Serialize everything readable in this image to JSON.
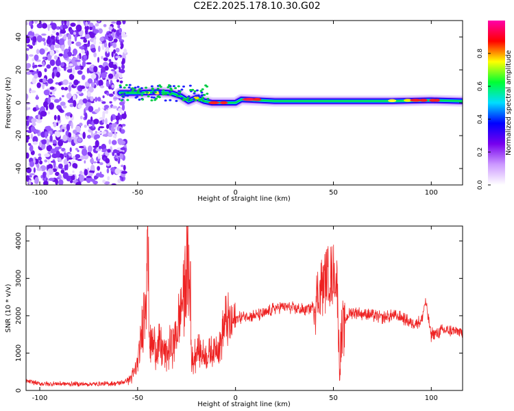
{
  "title": "C2E2.2025.178.10.30.G02",
  "chart_data": [
    {
      "type": "heatmap",
      "xlabel": "Height of straight line (km)",
      "ylabel": "Frequency (Hz)",
      "xlim": [
        -107,
        116
      ],
      "ylim": [
        -50,
        50
      ],
      "xticks": [
        -100,
        -50,
        0,
        50,
        100
      ],
      "yticks": [
        -40,
        -20,
        0,
        20,
        40
      ],
      "grid": false,
      "noise_region_x": [
        -107,
        -59
      ],
      "ridge": [
        {
          "x": -59,
          "y": 6
        },
        {
          "x": -50,
          "y": 6
        },
        {
          "x": -40,
          "y": 6.5
        },
        {
          "x": -33,
          "y": 6
        },
        {
          "x": -28,
          "y": 4
        },
        {
          "x": -24,
          "y": 1
        },
        {
          "x": -20,
          "y": 3
        },
        {
          "x": -16,
          "y": 1
        },
        {
          "x": -12,
          "y": 0
        },
        {
          "x": 0,
          "y": 0
        },
        {
          "x": 3,
          "y": 2
        },
        {
          "x": 20,
          "y": 1
        },
        {
          "x": 40,
          "y": 1
        },
        {
          "x": 60,
          "y": 1
        },
        {
          "x": 80,
          "y": 1
        },
        {
          "x": 100,
          "y": 1.5
        },
        {
          "x": 116,
          "y": 1
        }
      ],
      "colorbar": {
        "label": "Normalized spectral amplitude",
        "range": [
          0,
          1
        ],
        "ticks": [
          0.0,
          0.2,
          0.4,
          0.6,
          0.8
        ],
        "tick_labels": [
          "0.0",
          "0.2",
          "0.4",
          "0.6",
          "0.8"
        ],
        "colors": [
          "#ffffff",
          "#cc99ff",
          "#7700ee",
          "#0000ff",
          "#00ddff",
          "#00ff33",
          "#ffff00",
          "#ff0000",
          "#ff00aa"
        ]
      }
    },
    {
      "type": "line",
      "xlabel": "Height of straight line (km)",
      "ylabel": "SNR (10 * v/v)",
      "xlim": [
        -107,
        116
      ],
      "ylim": [
        0,
        4400
      ],
      "xticks": [
        -100,
        -50,
        0,
        50,
        100
      ],
      "yticks": [
        0,
        1000,
        2000,
        3000,
        4000
      ],
      "color": "#ee2222",
      "grid": false,
      "series": [
        {
          "x": [
            -107,
            -100,
            -90,
            -80,
            -70,
            -60,
            -56,
            -53,
            -50,
            -48,
            -46,
            -45,
            -44,
            -43,
            -40,
            -35,
            -30,
            -26,
            -24,
            -23,
            -22,
            -20,
            -15,
            -10,
            -8,
            -5,
            -2,
            0,
            5,
            10,
            15,
            20,
            25,
            30,
            35,
            40,
            43,
            45,
            47,
            50,
            52,
            53,
            55,
            57,
            60,
            65,
            70,
            75,
            80,
            85,
            90,
            95,
            97,
            100,
            100.5,
            103,
            105,
            110,
            116
          ],
          "y": [
            250,
            180,
            180,
            170,
            170,
            190,
            250,
            350,
            700,
            1400,
            2700,
            4300,
            1500,
            1200,
            1200,
            1000,
            1500,
            2800,
            3450,
            1400,
            700,
            1100,
            900,
            1150,
            1200,
            1850,
            1800,
            1900,
            2000,
            2000,
            2050,
            2200,
            2250,
            2200,
            2150,
            2250,
            2650,
            2900,
            3000,
            3100,
            2850,
            650,
            1700,
            2000,
            2100,
            2050,
            2000,
            1950,
            2000,
            1950,
            1800,
            1850,
            2400,
            1450,
            1550,
            1500,
            1600,
            1600,
            1550
          ]
        }
      ]
    }
  ]
}
